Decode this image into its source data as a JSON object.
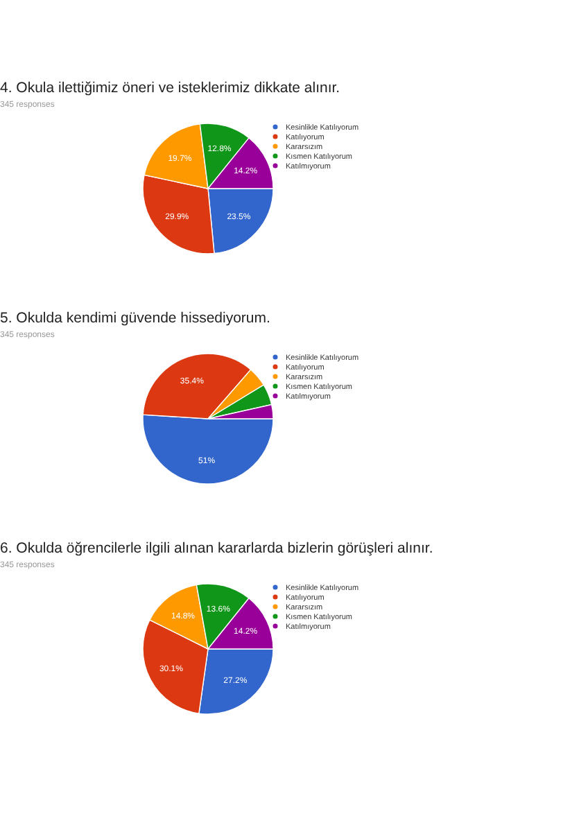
{
  "chart_data": [
    {
      "type": "pie",
      "title": "4. Okula ilettiğimiz öneri ve isteklerimiz dikkate alınır.",
      "subtitle": "345 responses",
      "categories": [
        "Kesinlikle Katılıyorum",
        "Katılıyorum",
        "Kararsızım",
        "Kısmen Katılıyorum",
        "Katılmıyorum"
      ],
      "values": [
        23.5,
        29.9,
        19.7,
        12.8,
        14.2
      ],
      "colors": [
        "#3366cc",
        "#dc3912",
        "#ff9900",
        "#109618",
        "#990099"
      ],
      "value_labels": [
        "23.5%",
        "29.9%",
        "19.7%",
        "12.8%",
        "14.2%"
      ],
      "legend": "right"
    },
    {
      "type": "pie",
      "title": "5. Okulda kendimi güvende hissediyorum.",
      "subtitle": "345 responses",
      "categories": [
        "Kesinlikle Katılıyorum",
        "Katılıyorum",
        "Kararsızım",
        "Kısmen Katılıyorum",
        "Katılmıyorum"
      ],
      "values": [
        51,
        35.4,
        4.9,
        5.2,
        3.5
      ],
      "colors": [
        "#3366cc",
        "#dc3912",
        "#ff9900",
        "#109618",
        "#990099"
      ],
      "value_labels": [
        "51%",
        "35.4%",
        null,
        null,
        null
      ],
      "legend": "right"
    },
    {
      "type": "pie",
      "title": "6. Okulda öğrencilerle ilgili alınan kararlarda bizlerin görüşleri alınır.",
      "subtitle": "345 responses",
      "categories": [
        "Kesinlikle Katılıyorum",
        "Katılıyorum",
        "Kararsızım",
        "Kısmen Katılıyorum",
        "Katılmıyorum"
      ],
      "values": [
        27.2,
        30.1,
        14.8,
        13.6,
        14.2
      ],
      "colors": [
        "#3366cc",
        "#dc3912",
        "#ff9900",
        "#109618",
        "#990099"
      ],
      "value_labels": [
        "27.2%",
        "30.1%",
        "14.8%",
        "13.6%",
        "14.2%"
      ],
      "legend": "right"
    }
  ]
}
